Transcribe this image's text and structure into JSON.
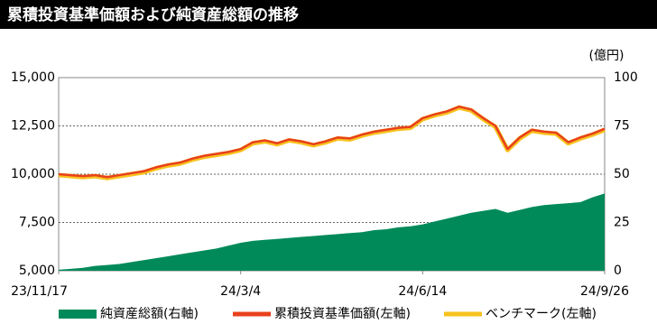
{
  "chart_data": {
    "type": "line",
    "title": "累積投資基準価額および純資産総額の推移",
    "y2_unit": "(億円)",
    "categories": [
      "23/11/17",
      null,
      null,
      null,
      null,
      null,
      null,
      null,
      null,
      null,
      null,
      null,
      null,
      null,
      null,
      "24/3/4",
      null,
      null,
      null,
      null,
      null,
      null,
      null,
      null,
      null,
      null,
      null,
      null,
      null,
      null,
      "24/6/14",
      null,
      null,
      null,
      null,
      null,
      null,
      null,
      null,
      null,
      null,
      null,
      null,
      null,
      null,
      "24/9/26"
    ],
    "series": [
      {
        "name": "純資産総額(右軸)",
        "color": "#008a5a",
        "axis": "y2",
        "style": "area",
        "values": [
          0.5,
          1,
          1.5,
          2.5,
          3,
          3.5,
          4.5,
          5.5,
          6.5,
          7.5,
          8.5,
          9.5,
          10.5,
          11.5,
          13,
          14.5,
          15.5,
          16,
          16.5,
          17,
          17.5,
          18,
          18.5,
          19,
          19.5,
          20,
          21,
          21.5,
          22.5,
          23,
          24,
          25.5,
          27,
          28.5,
          30,
          31,
          32,
          30,
          31.5,
          33,
          34,
          34.5,
          35,
          35.5,
          38,
          40
        ]
      },
      {
        "name": "累積投資基準価額(左軸)",
        "color": "#e8401c",
        "style": "line",
        "values": [
          10000,
          9950,
          9900,
          9950,
          9850,
          9950,
          10050,
          10150,
          10350,
          10500,
          10600,
          10800,
          10950,
          11050,
          11150,
          11300,
          11650,
          11750,
          11600,
          11800,
          11700,
          11550,
          11700,
          11900,
          11850,
          12050,
          12200,
          12300,
          12400,
          12450,
          12900,
          13100,
          13250,
          13500,
          13350,
          12900,
          12500,
          11300,
          11900,
          12300,
          12200,
          12150,
          11650,
          11900,
          12100,
          12350
        ]
      },
      {
        "name": "ベンチマーク(左軸)",
        "color": "#f7c21e",
        "style": "line",
        "values": [
          9950,
          9900,
          9850,
          9900,
          9800,
          9900,
          10000,
          10100,
          10300,
          10450,
          10550,
          10750,
          10900,
          11000,
          11100,
          11250,
          11600,
          11700,
          11550,
          11750,
          11650,
          11500,
          11650,
          11850,
          11800,
          12000,
          12150,
          12250,
          12350,
          12400,
          12850,
          13050,
          13200,
          13450,
          13300,
          12850,
          12450,
          11250,
          11850,
          12250,
          12150,
          12100,
          11600,
          11850,
          12050,
          12300
        ]
      }
    ],
    "ylim": [
      5000,
      15000
    ],
    "yticks": [
      {
        "value": 5000,
        "label": "5,000"
      },
      {
        "value": 7500,
        "label": "7,500"
      },
      {
        "value": 10000,
        "label": "10,000"
      },
      {
        "value": 12500,
        "label": "12,500"
      },
      {
        "value": 15000,
        "label": "15,000"
      }
    ],
    "y2lim": [
      0,
      100
    ],
    "y2ticks": [
      0,
      25,
      50,
      75,
      100
    ],
    "grid": true
  }
}
